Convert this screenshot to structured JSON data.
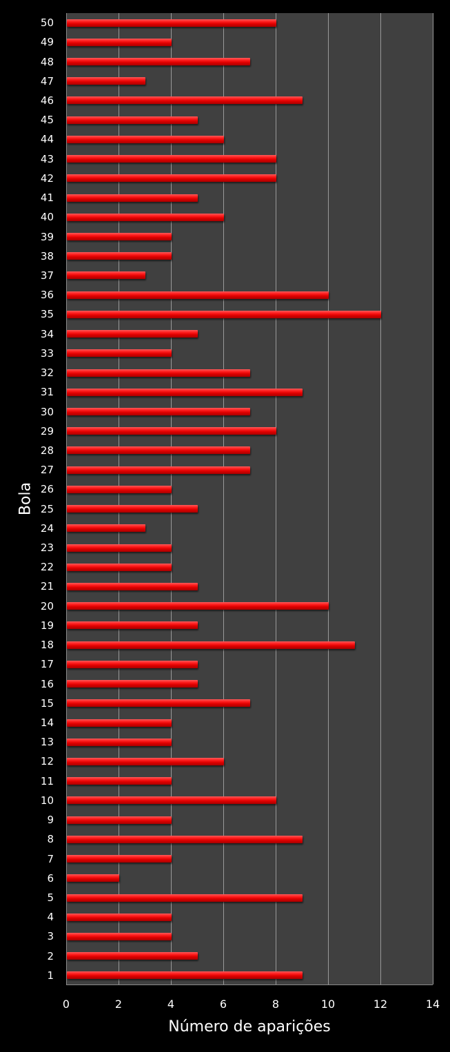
{
  "chart_data": {
    "type": "bar",
    "orientation": "horizontal",
    "title": "",
    "xlabel": "Número de aparições",
    "ylabel": "Bola",
    "xlim": [
      0,
      14
    ],
    "xticks": [
      0,
      2,
      4,
      6,
      8,
      10,
      12,
      14
    ],
    "grid": true,
    "legend": null,
    "categories": [
      "1",
      "2",
      "3",
      "4",
      "5",
      "6",
      "7",
      "8",
      "9",
      "10",
      "11",
      "12",
      "13",
      "14",
      "15",
      "16",
      "17",
      "18",
      "19",
      "20",
      "21",
      "22",
      "23",
      "24",
      "25",
      "26",
      "27",
      "28",
      "29",
      "30",
      "31",
      "32",
      "33",
      "34",
      "35",
      "36",
      "37",
      "38",
      "39",
      "40",
      "41",
      "42",
      "43",
      "44",
      "45",
      "46",
      "47",
      "48",
      "49",
      "50"
    ],
    "values": [
      9,
      5,
      4,
      4,
      9,
      2,
      4,
      9,
      4,
      8,
      4,
      6,
      4,
      4,
      7,
      5,
      5,
      11,
      5,
      10,
      5,
      4,
      4,
      3,
      5,
      4,
      7,
      7,
      8,
      7,
      9,
      7,
      4,
      5,
      12,
      10,
      3,
      4,
      4,
      6,
      5,
      8,
      8,
      6,
      5,
      9,
      3,
      7,
      4,
      8
    ],
    "colors": {
      "bar": "#e00000",
      "plot_bg": "#404040",
      "page_bg": "#000000",
      "grid": "#9a9a9a"
    }
  }
}
